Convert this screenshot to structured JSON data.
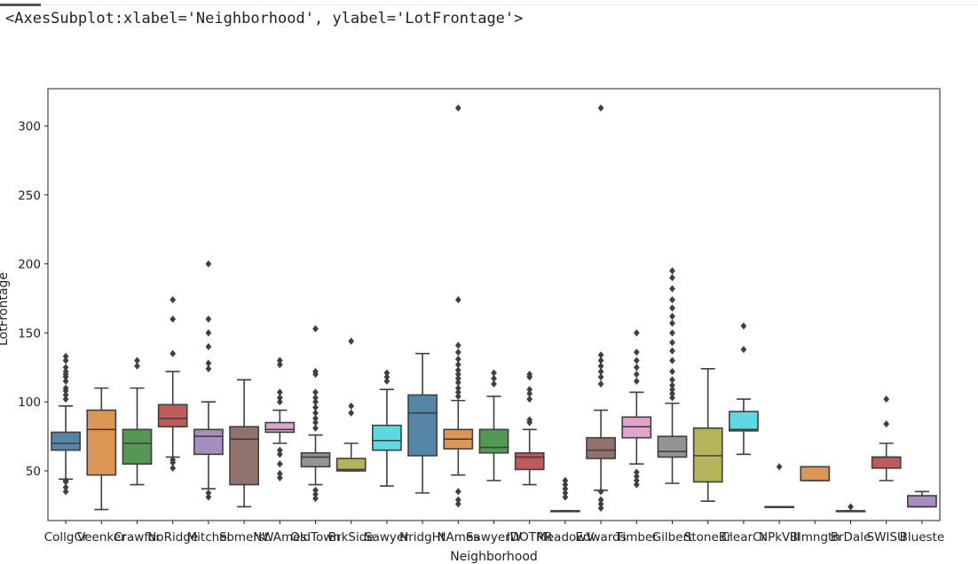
{
  "output_header": {
    "repr": "<AxesSubplot:xlabel='Neighborhood', ylabel='LotFrontage'>"
  },
  "chart_data": {
    "type": "box",
    "xlabel": "Neighborhood",
    "ylabel": "LotFrontage",
    "ylim": [
      14,
      327
    ],
    "yticks": [
      50,
      100,
      150,
      200,
      250,
      300
    ],
    "grid": false,
    "boxes": [
      {
        "category": "CollgCr",
        "color": "#3274a1",
        "q1": 65,
        "median": 70,
        "q3": 78,
        "whislo": 44,
        "whishi": 97,
        "fliers": [
          35,
          38,
          42,
          43,
          102,
          105,
          108,
          110,
          115,
          118,
          120,
          122,
          125,
          130,
          133
        ]
      },
      {
        "category": "Veenker",
        "color": "#e1812c",
        "q1": 47,
        "median": 80,
        "q3": 94,
        "whislo": 22,
        "whishi": 110,
        "fliers": []
      },
      {
        "category": "Crawfor",
        "color": "#3a923a",
        "q1": 55,
        "median": 70,
        "q3": 80,
        "whislo": 40,
        "whishi": 110,
        "fliers": [
          126,
          130
        ]
      },
      {
        "category": "NoRidge",
        "color": "#c03d3e",
        "q1": 82,
        "median": 88,
        "q3": 98,
        "whislo": 60,
        "whishi": 122,
        "fliers": [
          52,
          56,
          58,
          135,
          160,
          174
        ]
      },
      {
        "category": "Mitchel",
        "color": "#9372b2",
        "q1": 62,
        "median": 75,
        "q3": 80,
        "whislo": 37,
        "whishi": 100,
        "fliers": [
          31,
          34,
          124,
          128,
          140,
          150,
          160,
          200
        ]
      },
      {
        "category": "Somerst",
        "color": "#845b53",
        "q1": 40,
        "median": 73,
        "q3": 82,
        "whislo": 24,
        "whishi": 116,
        "fliers": []
      },
      {
        "category": "NWAmes",
        "color": "#d684bd",
        "q1": 78,
        "median": 80,
        "q3": 85,
        "whislo": 70,
        "whishi": 94,
        "fliers": [
          45,
          48,
          55,
          62,
          65,
          100,
          103,
          107,
          127,
          130
        ]
      },
      {
        "category": "OldTown",
        "color": "#7f7f7f",
        "q1": 53,
        "median": 60,
        "q3": 63,
        "whislo": 40,
        "whishi": 76,
        "fliers": [
          30,
          33,
          36,
          81,
          85,
          88,
          92,
          96,
          100,
          103,
          107,
          120,
          122,
          153
        ]
      },
      {
        "category": "BrkSide",
        "color": "#a9aa35",
        "q1": 50,
        "median": 51,
        "q3": 59,
        "whislo": 50,
        "whishi": 70,
        "fliers": [
          92,
          97,
          144
        ]
      },
      {
        "category": "Sawyer",
        "color": "#2ed0dd",
        "q1": 65,
        "median": 72,
        "q3": 83,
        "whislo": 39,
        "whishi": 109,
        "fliers": [
          115,
          118,
          121
        ]
      },
      {
        "category": "NridgHt",
        "color": "#3274a1",
        "q1": 61,
        "median": 92,
        "q3": 105,
        "whislo": 34,
        "whishi": 135,
        "fliers": []
      },
      {
        "category": "NAmes",
        "color": "#e1812c",
        "q1": 66,
        "median": 73,
        "q3": 80,
        "whislo": 47,
        "whishi": 101,
        "fliers": [
          26,
          29,
          35,
          104,
          107,
          110,
          114,
          117,
          120,
          123,
          127,
          131,
          136,
          141,
          174,
          313
        ]
      },
      {
        "category": "SawyerW",
        "color": "#3a923a",
        "q1": 63,
        "median": 67,
        "q3": 80,
        "whislo": 43,
        "whishi": 104,
        "fliers": [
          113,
          117,
          121
        ]
      },
      {
        "category": "IDOTRR",
        "color": "#c03d3e",
        "q1": 51,
        "median": 60,
        "q3": 63,
        "whislo": 40,
        "whishi": 80,
        "fliers": [
          85,
          87,
          102,
          106,
          109,
          118,
          120
        ]
      },
      {
        "category": "MeadowV",
        "color": "#9372b2",
        "q1": 21,
        "median": 21,
        "q3": 21,
        "whislo": 21,
        "whishi": 21,
        "fliers": [
          31,
          34,
          37,
          40,
          43
        ]
      },
      {
        "category": "Edwards",
        "color": "#845b53",
        "q1": 59,
        "median": 65,
        "q3": 74,
        "whislo": 36,
        "whishi": 94,
        "fliers": [
          23,
          26,
          29,
          35,
          113,
          118,
          122,
          126,
          130,
          134,
          313
        ]
      },
      {
        "category": "Timber",
        "color": "#d684bd",
        "q1": 74,
        "median": 82,
        "q3": 89,
        "whislo": 55,
        "whishi": 107,
        "fliers": [
          40,
          43,
          46,
          49,
          115,
          120,
          125,
          130,
          136,
          150
        ]
      },
      {
        "category": "Gilbert",
        "color": "#7f7f7f",
        "q1": 60,
        "median": 64,
        "q3": 75,
        "whislo": 41,
        "whishi": 99,
        "fliers": [
          103,
          106,
          109,
          112,
          116,
          122,
          130,
          137,
          143,
          150,
          157,
          162,
          168,
          174,
          182,
          190,
          195
        ]
      },
      {
        "category": "StoneBr",
        "color": "#a9aa35",
        "q1": 42,
        "median": 61,
        "q3": 81,
        "whislo": 28,
        "whishi": 124,
        "fliers": []
      },
      {
        "category": "ClearCr",
        "color": "#2ed0dd",
        "q1": 79,
        "median": 80,
        "q3": 93,
        "whislo": 62,
        "whishi": 102,
        "fliers": [
          138,
          155
        ]
      },
      {
        "category": "NPkVill",
        "color": "#3274a1",
        "q1": 24,
        "median": 24,
        "q3": 24,
        "whislo": 24,
        "whishi": 24,
        "fliers": [
          53
        ]
      },
      {
        "category": "Blmngtn",
        "color": "#e1812c",
        "q1": 43,
        "median": 43,
        "q3": 53,
        "whislo": 43,
        "whishi": 53,
        "fliers": []
      },
      {
        "category": "BrDale",
        "color": "#3a923a",
        "q1": 21,
        "median": 21,
        "q3": 21,
        "whislo": 21,
        "whishi": 21,
        "fliers": [
          24
        ]
      },
      {
        "category": "SWISU",
        "color": "#c03d3e",
        "q1": 52,
        "median": 60,
        "q3": 60,
        "whislo": 43,
        "whishi": 70,
        "fliers": [
          84,
          102
        ]
      },
      {
        "category": "Blueste",
        "color": "#9372b2",
        "q1": 24,
        "median": 24,
        "q3": 32,
        "whislo": 24,
        "whishi": 35,
        "fliers": []
      }
    ]
  }
}
